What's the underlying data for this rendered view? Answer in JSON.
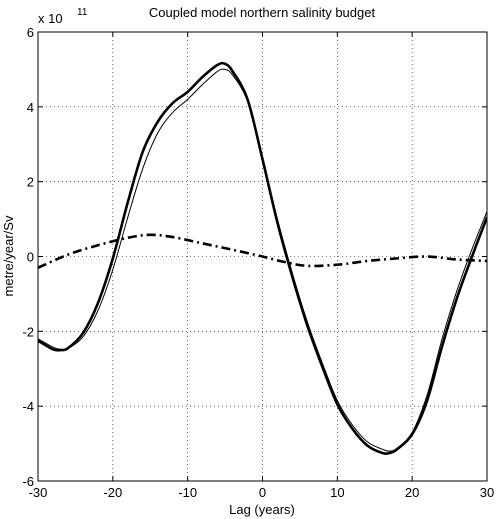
{
  "chart_data": {
    "type": "line",
    "title": "Coupled model northern salinity budget",
    "xlabel": "Lag (years)",
    "ylabel": "metre/year/Sv",
    "y_multiplier_label": "x 10",
    "y_multiplier_exponent": "11",
    "xlim": [
      -30,
      30
    ],
    "ylim": [
      -6,
      6
    ],
    "xticks": [
      "-30",
      "-20",
      "-10",
      "0",
      "10",
      "20",
      "30"
    ],
    "yticks": [
      "-6",
      "-4",
      "-2",
      "0",
      "2",
      "4",
      "6"
    ],
    "grid": true,
    "series": [
      {
        "style": "thick-solid",
        "x": [
          -30,
          -28,
          -27,
          -26,
          -24,
          -22,
          -20,
          -18,
          -16,
          -14,
          -12,
          -10,
          -8,
          -6,
          -5,
          -4,
          -2,
          0,
          2,
          4,
          6,
          8,
          10,
          12,
          14,
          16,
          17,
          18,
          20,
          22,
          24,
          26,
          28,
          30
        ],
        "y": [
          -2.25,
          -2.48,
          -2.5,
          -2.45,
          -2.05,
          -1.25,
          -0.05,
          1.45,
          2.8,
          3.6,
          4.1,
          4.4,
          4.8,
          5.12,
          5.15,
          4.95,
          4.2,
          2.6,
          0.9,
          -0.55,
          -1.85,
          -2.95,
          -3.95,
          -4.6,
          -5.05,
          -5.25,
          -5.25,
          -5.15,
          -4.75,
          -3.85,
          -2.4,
          -1.1,
          0.0,
          1.05
        ]
      },
      {
        "style": "thin-solid",
        "x": [
          -30,
          -28,
          -27,
          -26,
          -24,
          -22,
          -20,
          -18,
          -16,
          -14,
          -12,
          -10,
          -8,
          -6,
          -5,
          -4,
          -2,
          0,
          2,
          4,
          6,
          8,
          10,
          12,
          14,
          16,
          17,
          18,
          20,
          22,
          24,
          26,
          28,
          30
        ],
        "y": [
          -2.2,
          -2.42,
          -2.48,
          -2.46,
          -2.15,
          -1.45,
          -0.35,
          1.05,
          2.35,
          3.3,
          3.85,
          4.2,
          4.6,
          4.95,
          5.0,
          4.85,
          4.15,
          2.65,
          1.0,
          -0.45,
          -1.75,
          -2.85,
          -3.85,
          -4.5,
          -4.95,
          -5.15,
          -5.2,
          -5.12,
          -4.7,
          -3.7,
          -2.2,
          -0.9,
          0.2,
          1.2
        ]
      },
      {
        "style": "thick-dashdot",
        "x": [
          -30,
          -26,
          -22,
          -18,
          -15,
          -12,
          -8,
          -4,
          0,
          3,
          6,
          10,
          14,
          18,
          22,
          26,
          30
        ],
        "y": [
          -0.3,
          0.05,
          0.3,
          0.5,
          0.58,
          0.52,
          0.35,
          0.18,
          0.0,
          -0.15,
          -0.25,
          -0.22,
          -0.12,
          -0.05,
          0.0,
          -0.08,
          -0.12
        ]
      }
    ]
  }
}
